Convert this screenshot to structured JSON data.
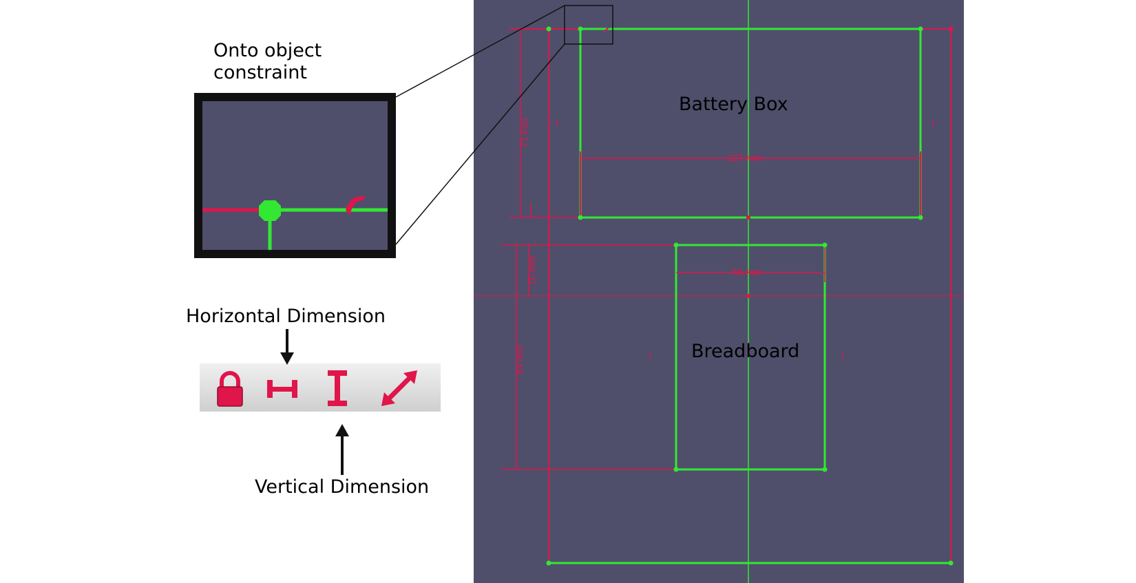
{
  "annotations": {
    "onto_constraint": "Onto object\nconstraint",
    "horizontal_dimension": "Horizontal Dimension",
    "vertical_dimension": "Vertical Dimension"
  },
  "sketch": {
    "battery_box_label": "Battery Box",
    "breadboard_label": "Breadboard",
    "dim_71": "71 mm",
    "dim_127": "127 mm",
    "dim_10": "10 mm",
    "dim_56": "56 mm",
    "dim_84": "84 mm"
  },
  "toolbar": {
    "tools": [
      {
        "icon": "lock-icon"
      },
      {
        "icon": "horizontal-dimension-icon"
      },
      {
        "icon": "vertical-dimension-icon"
      },
      {
        "icon": "distance-dimension-icon"
      }
    ]
  },
  "colors": {
    "background": "#4f4f6b",
    "geometry": "#33e833",
    "constraint": "#e0154a"
  }
}
